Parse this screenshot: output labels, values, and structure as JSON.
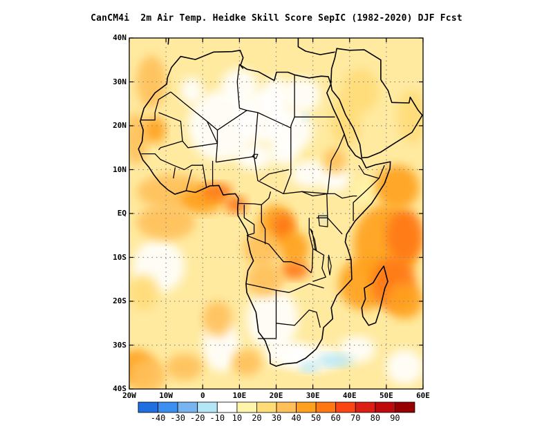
{
  "title": "CanCM4i  2m Air Temp. Heidke Skill Score SepIC (1982-2020) DJF Fcst",
  "map": {
    "lon_range": [
      -20,
      60
    ],
    "lat_range": [
      -40,
      40
    ],
    "lat_ticks": [
      {
        "value": 40,
        "label": "40N"
      },
      {
        "value": 30,
        "label": "30N"
      },
      {
        "value": 20,
        "label": "20N"
      },
      {
        "value": 10,
        "label": "10N"
      },
      {
        "value": 0,
        "label": "EQ"
      },
      {
        "value": -10,
        "label": "10S"
      },
      {
        "value": -20,
        "label": "20S"
      },
      {
        "value": -30,
        "label": "30S"
      },
      {
        "value": -40,
        "label": "40S"
      }
    ],
    "lon_ticks": [
      {
        "value": -20,
        "label": "20W"
      },
      {
        "value": -10,
        "label": "10W"
      },
      {
        "value": 0,
        "label": "0"
      },
      {
        "value": 10,
        "label": "10E"
      },
      {
        "value": 20,
        "label": "20E"
      },
      {
        "value": 30,
        "label": "30E"
      },
      {
        "value": 40,
        "label": "40E"
      },
      {
        "value": 50,
        "label": "50E"
      },
      {
        "value": 60,
        "label": "60E"
      }
    ],
    "grid": "dotted"
  },
  "colorbar": {
    "colors": [
      "#1f6fe0",
      "#3b8ff0",
      "#78b4f0",
      "#b4e6f5",
      "#ffffff",
      "#fff5aa",
      "#ffdc78",
      "#ffc05a",
      "#ffa01e",
      "#ff7814",
      "#fa4614",
      "#dc1e14",
      "#be0a0a",
      "#960000"
    ],
    "labels": [
      "-40",
      "-30",
      "-20",
      "-10",
      "10",
      "20",
      "30",
      "40",
      "50",
      "60",
      "70",
      "80",
      "90"
    ]
  }
}
